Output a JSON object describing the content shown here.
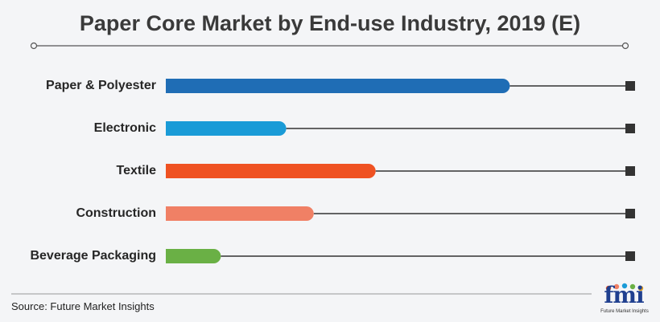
{
  "chart_data": {
    "type": "bar",
    "orientation": "horizontal",
    "title": "Paper Core Market by End-use Industry, 2019 (E)",
    "categories": [
      "Paper & Polyester",
      "Electronic",
      "Textile",
      "Construction",
      "Beverage Packaging"
    ],
    "values": [
      100,
      35,
      61,
      43,
      16
    ],
    "colors": [
      "#1f6db5",
      "#1a9bd7",
      "#ef5222",
      "#f08065",
      "#6ab045"
    ],
    "xlim": [
      0,
      135
    ],
    "grid": false,
    "legend": "none"
  },
  "footer": {
    "source": "Source: Future Market Insights",
    "logo_text": "fmi",
    "logo_subtext": "Future Market Insights"
  }
}
